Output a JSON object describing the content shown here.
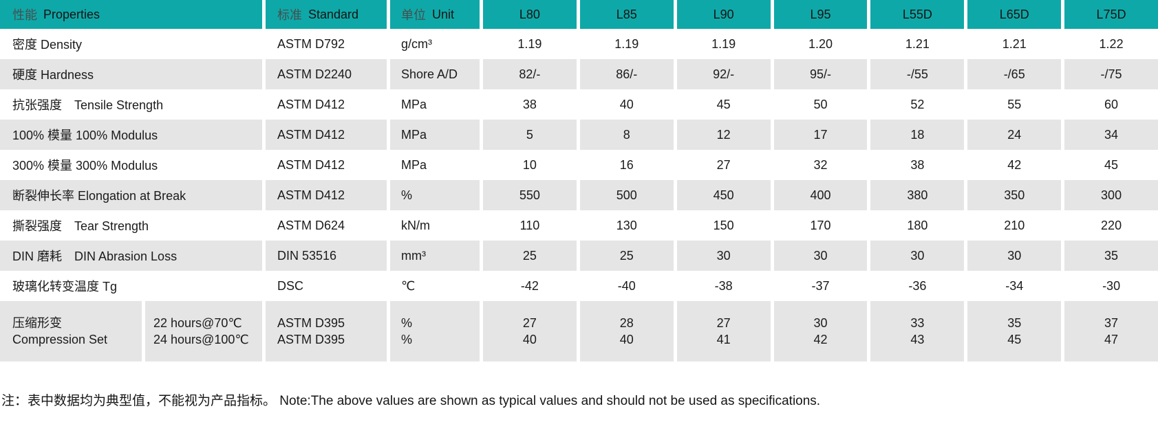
{
  "table": {
    "colors": {
      "header_bg": "#0FA8A8",
      "row_alt_bg": "#E5E5E5",
      "divider": "#FFFFFF",
      "text": "#1B1B1B"
    },
    "header": {
      "cols": [
        {
          "zh": "性能",
          "en": "Properties"
        },
        {
          "zh": "标准",
          "en": "Standard"
        },
        {
          "zh": "单位",
          "en": "Unit"
        }
      ],
      "grades": [
        "L80",
        "L85",
        "L90",
        "L95",
        "L55D",
        "L65D",
        "L75D"
      ]
    },
    "rows": [
      {
        "label": "密度 Density",
        "standard": "ASTM D792",
        "unit": "g/cm³",
        "values": [
          "1.19",
          "1.19",
          "1.19",
          "1.20",
          "1.21",
          "1.21",
          "1.22"
        ]
      },
      {
        "label": "硬度 Hardness",
        "standard": "ASTM D2240",
        "unit": "Shore A/D",
        "values": [
          "82/-",
          "86/-",
          "92/-",
          "95/-",
          "-/55",
          "-/65",
          "-/75"
        ]
      },
      {
        "label": "抗张强度　Tensile Strength",
        "standard": "ASTM D412",
        "unit": "MPa",
        "values": [
          "38",
          "40",
          "45",
          "50",
          "52",
          "55",
          "60"
        ]
      },
      {
        "label": "100% 模量 100% Modulus",
        "standard": "ASTM D412",
        "unit": "MPa",
        "values": [
          "5",
          "8",
          "12",
          "17",
          "18",
          "24",
          "34"
        ]
      },
      {
        "label": "300% 模量 300% Modulus",
        "standard": "ASTM D412",
        "unit": "MPa",
        "values": [
          "10",
          "16",
          "27",
          "32",
          "38",
          "42",
          "45"
        ]
      },
      {
        "label": "断裂伸长率 Elongation at Break",
        "standard": "ASTM D412",
        "unit": "%",
        "values": [
          "550",
          "500",
          "450",
          "400",
          "380",
          "350",
          "300"
        ]
      },
      {
        "label": "撕裂强度　Tear Strength",
        "standard": "ASTM D624",
        "unit": "kN/m",
        "values": [
          "110",
          "130",
          "150",
          "170",
          "180",
          "210",
          "220"
        ]
      },
      {
        "label": "DIN 磨耗　DIN Abrasion Loss",
        "standard": "DIN 53516",
        "unit": "mm³",
        "values": [
          "25",
          "25",
          "30",
          "30",
          "30",
          "30",
          "35"
        ]
      },
      {
        "label": "玻璃化转变温度 Tg",
        "standard": "DSC",
        "unit": "℃",
        "values": [
          "-42",
          "-40",
          "-38",
          "-37",
          "-36",
          "-34",
          "-30"
        ]
      }
    ],
    "compression_row": {
      "label_lines": [
        "压缩形变",
        "Compression Set"
      ],
      "condition_lines": [
        "22 hours@70℃",
        "24 hours@100℃"
      ],
      "standard_lines": [
        "ASTM D395",
        "ASTM D395"
      ],
      "unit_lines": [
        "%",
        "%"
      ],
      "values": [
        [
          "27",
          "40"
        ],
        [
          "28",
          "40"
        ],
        [
          "27",
          "41"
        ],
        [
          "30",
          "42"
        ],
        [
          "33",
          "43"
        ],
        [
          "35",
          "45"
        ],
        [
          "37",
          "47"
        ]
      ]
    }
  },
  "footnote": "注：表中数据均为典型值，不能视为产品指标。 Note:The above values are shown as typical values and should not be used as specifications."
}
